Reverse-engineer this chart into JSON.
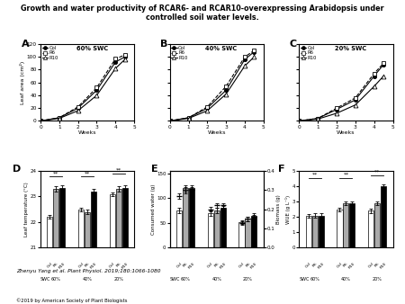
{
  "title": "Growth and water productivity of RCAR6- and RCAR10-overexpressing Arabidopsis under\ncontrolled soil water levels.",
  "panels_top": {
    "A": {
      "swc": "60% SWC",
      "xlim": [
        0,
        5
      ],
      "ylim": [
        0,
        120
      ]
    },
    "B": {
      "swc": "40% SWC",
      "xlim": [
        0,
        5
      ],
      "ylim": [
        0,
        120
      ]
    },
    "C": {
      "swc": "20% SWC",
      "xlim": [
        0,
        5
      ],
      "ylim": [
        0,
        120
      ]
    }
  },
  "line_weeks": [
    0,
    1,
    2,
    3,
    4,
    4.5
  ],
  "line_data": {
    "A": {
      "Col": [
        0,
        5,
        20,
        48,
        92,
        100
      ],
      "R6": [
        0,
        5,
        22,
        52,
        97,
        103
      ],
      "R10": [
        0,
        4,
        16,
        40,
        82,
        96
      ]
    },
    "B": {
      "Col": [
        0,
        5,
        20,
        48,
        96,
        108
      ],
      "R6": [
        0,
        5,
        22,
        54,
        100,
        110
      ],
      "R10": [
        0,
        4,
        16,
        42,
        86,
        100
      ]
    },
    "C": {
      "Col": [
        0,
        4,
        18,
        33,
        70,
        88
      ],
      "R6": [
        0,
        4,
        20,
        36,
        74,
        90
      ],
      "R10": [
        0,
        3,
        12,
        25,
        54,
        70
      ]
    }
  },
  "swc_labels": [
    "60%",
    "40%",
    "20%"
  ],
  "panel_D": {
    "ylabel": "Leaf temperature (°C)",
    "ylim": [
      21,
      24
    ],
    "yticks": [
      21,
      22,
      23,
      24
    ],
    "values": [
      [
        22.2,
        23.3,
        23.35
      ],
      [
        22.5,
        22.4,
        23.2
      ],
      [
        23.1,
        23.3,
        23.35
      ]
    ],
    "errors": [
      [
        0.07,
        0.1,
        0.1
      ],
      [
        0.07,
        0.1,
        0.1
      ],
      [
        0.07,
        0.1,
        0.1
      ]
    ]
  },
  "panel_E": {
    "ylabel_left": "Consumed water (g)",
    "ylabel_right": "Biomass (g)",
    "ylim_left": [
      0,
      155
    ],
    "ylim_right": [
      0,
      0.4
    ],
    "yticks_left": [
      0,
      50,
      100,
      150
    ],
    "yticks_right": [
      0.0,
      0.1,
      0.2,
      0.3,
      0.4
    ],
    "water_values": [
      [
        75,
        120,
        120
      ],
      [
        70,
        75,
        80
      ],
      [
        52,
        58,
        65
      ]
    ],
    "bio_values": [
      [
        0.27,
        0.3,
        0.3
      ],
      [
        0.2,
        0.22,
        0.22
      ],
      [
        0.13,
        0.15,
        0.16
      ]
    ],
    "water_errors": [
      [
        5,
        6,
        6
      ],
      [
        5,
        5,
        5
      ],
      [
        4,
        4,
        4
      ]
    ],
    "bio_errors": [
      [
        0.015,
        0.015,
        0.015
      ],
      [
        0.012,
        0.012,
        0.012
      ],
      [
        0.01,
        0.01,
        0.01
      ]
    ]
  },
  "panel_F": {
    "ylabel": "WUE (g L⁻¹)",
    "ylim": [
      0,
      5
    ],
    "yticks": [
      0,
      1,
      2,
      3,
      4,
      5
    ],
    "values": [
      [
        2.1,
        2.1,
        2.1
      ],
      [
        2.5,
        2.9,
        2.9
      ],
      [
        2.4,
        2.9,
        4.0
      ]
    ],
    "errors": [
      [
        0.12,
        0.14,
        0.14
      ],
      [
        0.12,
        0.14,
        0.14
      ],
      [
        0.12,
        0.14,
        0.14
      ]
    ]
  },
  "citation": "Zhenyu Yang et al. Plant Physiol. 2019;180:1066-1080",
  "copyright": "©2019 by American Society of Plant Biologists",
  "bar_colors": [
    "white",
    "#aaaaaa",
    "black"
  ],
  "bar_edgecolor": "black"
}
